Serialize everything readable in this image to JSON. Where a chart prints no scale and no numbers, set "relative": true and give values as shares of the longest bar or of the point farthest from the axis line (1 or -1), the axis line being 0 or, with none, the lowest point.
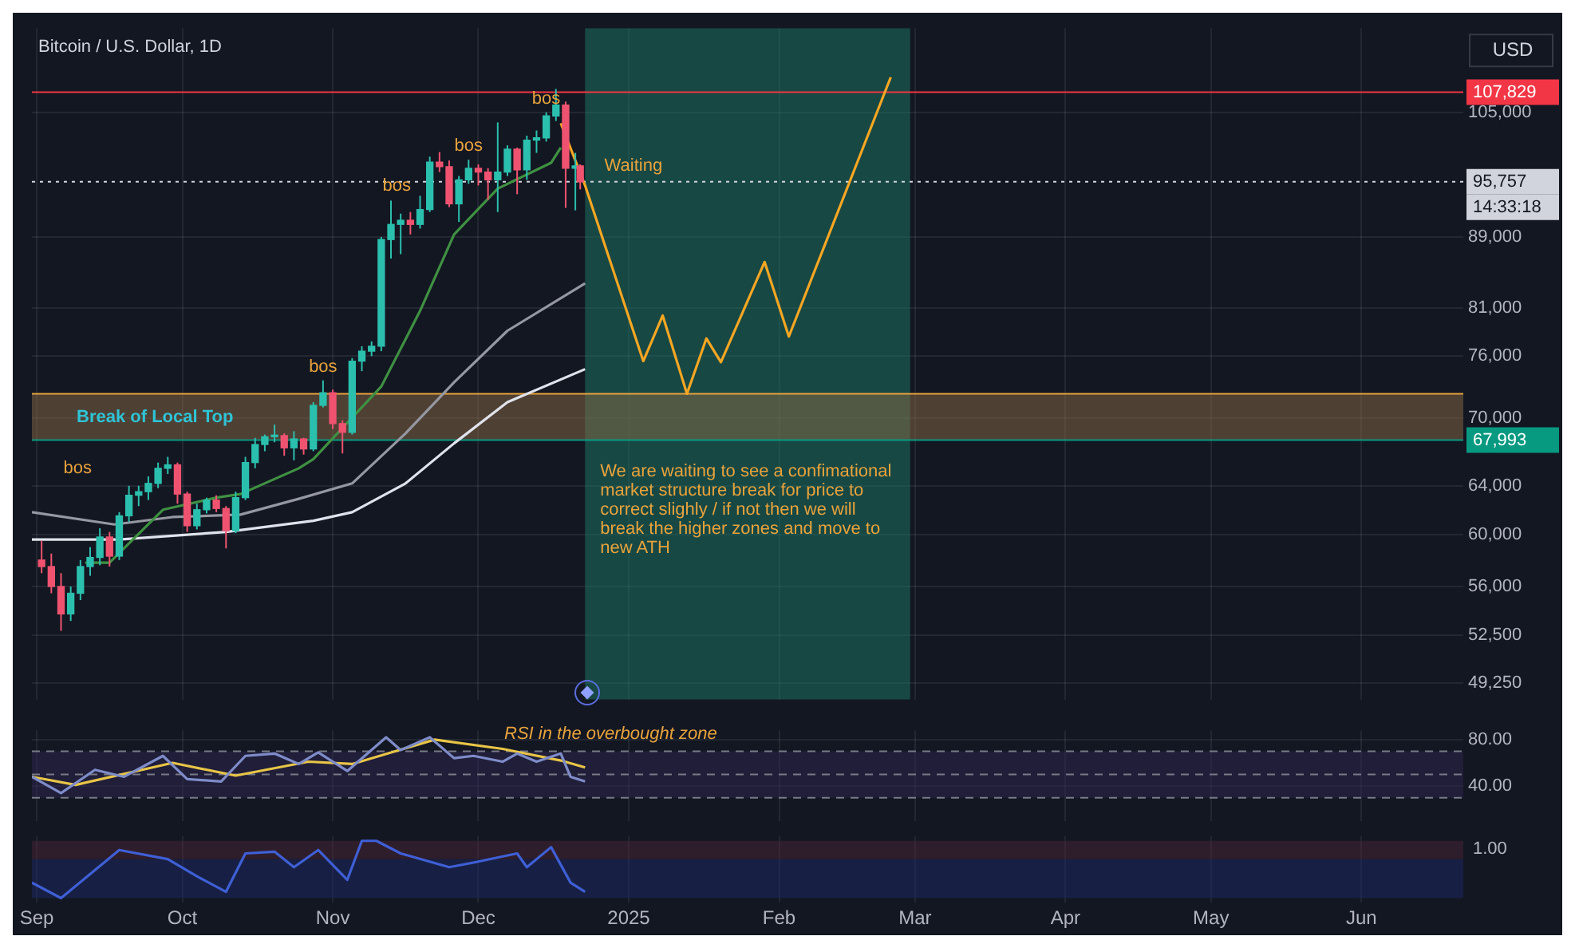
{
  "chart_data": [
    {
      "type": "candlestick",
      "title": "Bitcoin / U.S. Dollar, 1D",
      "ylabel": "USD",
      "log": true,
      "grid": true,
      "tick_labels": "y",
      "x": [
        "2024-09-02",
        "2024-09-04",
        "2024-09-06",
        "2024-09-08",
        "2024-09-10",
        "2024-09-12",
        "2024-09-14",
        "2024-09-16",
        "2024-09-18",
        "2024-09-20",
        "2024-09-22",
        "2024-09-24",
        "2024-09-26",
        "2024-09-28",
        "2024-09-30",
        "2024-10-02",
        "2024-10-04",
        "2024-10-06",
        "2024-10-08",
        "2024-10-10",
        "2024-10-12",
        "2024-10-14",
        "2024-10-16",
        "2024-10-18",
        "2024-10-20",
        "2024-10-22",
        "2024-10-24",
        "2024-10-26",
        "2024-10-28",
        "2024-10-30",
        "2024-11-01",
        "2024-11-03",
        "2024-11-05",
        "2024-11-07",
        "2024-11-09",
        "2024-11-11",
        "2024-11-13",
        "2024-11-15",
        "2024-11-17",
        "2024-11-19",
        "2024-11-21",
        "2024-11-23",
        "2024-11-25",
        "2024-11-27",
        "2024-11-29",
        "2024-12-01",
        "2024-12-03",
        "2024-12-05",
        "2024-12-07",
        "2024-12-09",
        "2024-12-11",
        "2024-12-13",
        "2024-12-15",
        "2024-12-17",
        "2024-12-19",
        "2024-12-21",
        "2024-12-22"
      ],
      "ohlc": [
        [
          58000,
          59500,
          57000,
          57500
        ],
        [
          57500,
          58500,
          55500,
          56000
        ],
        [
          56000,
          57000,
          52800,
          54000
        ],
        [
          54000,
          56000,
          53500,
          55500
        ],
        [
          55500,
          58000,
          55000,
          57500
        ],
        [
          57500,
          59000,
          56800,
          58200
        ],
        [
          58200,
          60500,
          57600,
          59800
        ],
        [
          59800,
          60200,
          57500,
          58300
        ],
        [
          58300,
          61800,
          58000,
          61500
        ],
        [
          61500,
          64000,
          61000,
          63200
        ],
        [
          63200,
          64000,
          62300,
          63500
        ],
        [
          63500,
          64800,
          62800,
          64200
        ],
        [
          64200,
          66000,
          63800,
          65500
        ],
        [
          65500,
          66500,
          65000,
          65800
        ],
        [
          65800,
          66000,
          62500,
          63300
        ],
        [
          63300,
          63500,
          60200,
          60700
        ],
        [
          60700,
          62500,
          60400,
          62000
        ],
        [
          62000,
          63000,
          61700,
          62800
        ],
        [
          62800,
          63200,
          61800,
          62100
        ],
        [
          62100,
          62300,
          58900,
          60300
        ],
        [
          60300,
          63500,
          60100,
          63000
        ],
        [
          63000,
          66500,
          62800,
          66000
        ],
        [
          66000,
          68200,
          65500,
          67600
        ],
        [
          67600,
          68500,
          67000,
          68300
        ],
        [
          68300,
          69400,
          67800,
          68400
        ],
        [
          68400,
          68600,
          66600,
          67300
        ],
        [
          67300,
          68800,
          66200,
          68100
        ],
        [
          68100,
          68200,
          66700,
          67200
        ],
        [
          67200,
          71500,
          67000,
          71200
        ],
        [
          71200,
          73600,
          71000,
          72400
        ],
        [
          72400,
          72700,
          69000,
          69500
        ],
        [
          69500,
          69800,
          66800,
          68700
        ],
        [
          68700,
          75800,
          68500,
          75500
        ],
        [
          75500,
          77000,
          74500,
          76500
        ],
        [
          76500,
          77500,
          76000,
          77000
        ],
        [
          77000,
          89000,
          76500,
          88700
        ],
        [
          88700,
          93400,
          86500,
          90500
        ],
        [
          90500,
          91800,
          87000,
          91000
        ],
        [
          91000,
          92000,
          89300,
          90500
        ],
        [
          90500,
          94000,
          90000,
          92300
        ],
        [
          92300,
          99000,
          92000,
          98300
        ],
        [
          98300,
          99600,
          97000,
          97700
        ],
        [
          97700,
          98500,
          92600,
          93000
        ],
        [
          93000,
          96500,
          90800,
          96000
        ],
        [
          96000,
          98600,
          95500,
          97500
        ],
        [
          97500,
          98000,
          95300,
          97000
        ],
        [
          97000,
          97500,
          93500,
          96000
        ],
        [
          96000,
          103600,
          92000,
          97000
        ],
        [
          97000,
          100500,
          96500,
          100000
        ],
        [
          100000,
          100200,
          94200,
          97300
        ],
        [
          97300,
          101800,
          96000,
          101200
        ],
        [
          101200,
          102500,
          99500,
          101500
        ],
        [
          101500,
          105000,
          101000,
          104500
        ],
        [
          104500,
          108300,
          103800,
          106000
        ],
        [
          106000,
          106500,
          92500,
          97500
        ],
        [
          97500,
          99500,
          92200,
          97800
        ],
        [
          97800,
          98000,
          94800,
          95757
        ]
      ],
      "xticks": [
        {
          "value": "2024-09-01",
          "label": null
        },
        {
          "value": "2024-10-01",
          "label": null
        },
        {
          "value": "2024-11-01",
          "label": null
        },
        {
          "value": "2024-12-01",
          "label": null
        },
        {
          "value": "2025-01-01",
          "label": null
        },
        {
          "value": "2025-02-01",
          "label": null
        },
        {
          "value": "2025-03-01",
          "label": null
        },
        {
          "value": "2025-04-01",
          "label": null
        },
        {
          "value": "2025-05-01",
          "label": null
        },
        {
          "value": "2025-06-01",
          "label": null
        }
      ],
      "series": [
        {
          "type": "line",
          "color": "#3f9142",
          "x": [
            "2024-09-11",
            "2024-09-16",
            "2024-09-27",
            "2024-10-08",
            "2024-10-13",
            "2024-10-25",
            "2024-10-28",
            "2024-11-11",
            "2024-11-19",
            "2024-11-26",
            "2024-12-05",
            "2024-12-16",
            "2024-12-18"
          ],
          "values": [
            57800,
            57800,
            62000,
            63000,
            63300,
            65500,
            66300,
            73000,
            80700,
            89300,
            94900,
            98200,
            100200
          ]
        },
        {
          "type": "line",
          "color": "#9598a1",
          "x": [
            "2024-08-31",
            "2024-09-17",
            "2024-09-29",
            "2024-10-13",
            "2024-10-25",
            "2024-11-05",
            "2024-11-16",
            "2024-11-26",
            "2024-12-07",
            "2024-12-23"
          ],
          "values": [
            61800,
            60800,
            61400,
            61600,
            62900,
            64200,
            68600,
            73400,
            78600,
            83700
          ]
        },
        {
          "type": "line",
          "color": "#e0e3eb",
          "x": [
            "2024-08-31",
            "2024-09-18",
            "2024-10-10",
            "2024-10-28",
            "2024-11-05",
            "2024-11-16",
            "2024-11-26",
            "2024-12-07",
            "2024-12-23"
          ],
          "values": [
            59600,
            59600,
            60200,
            61100,
            61800,
            64200,
            67700,
            71500,
            74700
          ]
        },
        {
          "type": "line",
          "color": "#f5a623",
          "x": [
            "2024-12-18",
            "2024-12-23",
            "2025-01-04",
            "2025-01-08",
            "2025-01-13",
            "2025-01-17",
            "2025-01-20",
            "2025-01-29",
            "2025-02-03",
            "2025-02-24"
          ],
          "values": [
            103500,
            95300,
            75500,
            80200,
            72300,
            77800,
            75400,
            86100,
            78000,
            110000
          ]
        }
      ],
      "xlim": [
        "2024-08-31",
        "2025-06-22"
      ],
      "ylim": [
        48200,
        117400
      ],
      "yticks": [
        {
          "value": 49250,
          "label": "49,250"
        },
        {
          "value": 52500,
          "label": "52,500"
        },
        {
          "value": 56000,
          "label": "56,000"
        },
        {
          "value": 60000,
          "label": "60,000"
        },
        {
          "value": 64000,
          "label": "64,000"
        },
        {
          "value": 70000,
          "label": "70,000"
        },
        {
          "value": 76000,
          "label": "76,000"
        },
        {
          "value": 81000,
          "label": "81,000"
        },
        {
          "value": 89000,
          "label": "89,000"
        },
        {
          "value": 105000,
          "label": "105,000"
        }
      ],
      "ref_lines": [
        {
          "axis": "y",
          "value": 107829,
          "label": "107,829",
          "color": "#f23645"
        },
        {
          "axis": "y",
          "value": 95757,
          "label": "95,757",
          "color": "#d1d4dc",
          "line_style": "dotted"
        },
        {
          "axis": "y",
          "value": 67993,
          "label": "67,993",
          "color": "#089981"
        },
        {
          "axis": "y",
          "value": 72300,
          "color": "#e8a33c"
        }
      ],
      "bands": [
        {
          "axis": "x",
          "from": "2024-12-23",
          "to": "2025-02-28",
          "color": "#1b7a66"
        },
        {
          "axis": "y",
          "from": 68000,
          "to": 72300,
          "label": "Break of Local Top",
          "color": "#8c6a45"
        }
      ],
      "annotations": [
        "bos",
        {
          "text": "bos",
          "x": "2024-10-30",
          "y": 73600
        },
        "bos",
        {
          "text": "bos",
          "x": "2024-11-29",
          "y": 98600
        },
        {
          "text": "bos",
          "x": "2024-12-15",
          "y": 105000
        },
        "Waiting",
        "We are waiting to see a confimational market structure break for price to correct slighly / if not then we will break the higher zones and move to new ATH",
        "14:33:18"
      ]
    },
    {
      "type": "line",
      "grid": true,
      "tick_labels": "y",
      "series": [
        {
          "color": "#7e8cc9",
          "x": [
            "2024-08-31",
            "2024-09-06",
            "2024-09-13",
            "2024-09-19",
            "2024-09-27",
            "2024-10-02",
            "2024-10-09",
            "2024-10-14",
            "2024-10-20",
            "2024-10-25",
            "2024-10-29",
            "2024-11-04",
            "2024-11-12",
            "2024-11-15",
            "2024-11-21",
            "2024-11-26",
            "2024-11-30",
            "2024-12-06",
            "2024-12-09",
            "2024-12-13",
            "2024-12-18",
            "2024-12-20",
            "2024-12-23"
          ],
          "values": [
            48,
            34,
            54,
            48,
            66,
            46,
            44,
            66,
            68,
            59,
            69,
            53,
            82,
            71,
            82,
            64,
            66,
            61,
            68,
            61,
            68,
            48,
            44
          ]
        },
        {
          "color": "#e8c547",
          "x": [
            "2024-08-31",
            "2024-09-09",
            "2024-09-29",
            "2024-10-12",
            "2024-10-27",
            "2024-11-05",
            "2024-11-22",
            "2024-12-06",
            "2024-12-18",
            "2024-12-23"
          ],
          "values": [
            48,
            41,
            60,
            49,
            61,
            59,
            80,
            72,
            62,
            56
          ]
        }
      ],
      "xlim": [
        "2024-08-31",
        "2025-06-22"
      ],
      "xticks": [
        {
          "value": "2024-09-01",
          "label": null
        },
        {
          "value": "2024-10-01",
          "label": null
        },
        {
          "value": "2024-11-01",
          "label": null
        },
        {
          "value": "2024-12-01",
          "label": null
        },
        {
          "value": "2025-01-01",
          "label": null
        },
        {
          "value": "2025-02-01",
          "label": null
        },
        {
          "value": "2025-03-01",
          "label": null
        },
        {
          "value": "2025-04-01",
          "label": null
        },
        {
          "value": "2025-05-01",
          "label": null
        },
        {
          "value": "2025-06-01",
          "label": null
        }
      ],
      "ylim": [
        10,
        88
      ],
      "yticks": [
        {
          "value": 40,
          "label": "40.00"
        },
        {
          "value": 80,
          "label": "80.00"
        }
      ],
      "ref_lines": [
        {
          "axis": "y",
          "value": 70,
          "color": "#787b86",
          "line_style": "dashed"
        },
        {
          "axis": "y",
          "value": 50,
          "color": "#787b86",
          "line_style": "dashed"
        },
        {
          "axis": "y",
          "value": 30,
          "color": "#787b86",
          "line_style": "dashed"
        }
      ],
      "bands": [
        {
          "axis": "y",
          "from": 30,
          "to": 70,
          "color": "#2e2650"
        }
      ],
      "annotations": [
        "RSI in the overbought zone"
      ]
    },
    {
      "type": "line",
      "relative": true,
      "grid": "x",
      "tick_labels": "x",
      "series": [
        {
          "color": "#3f5fd6",
          "x": [
            "2024-08-31",
            "2024-09-06",
            "2024-09-18",
            "2024-09-28",
            "2024-10-04",
            "2024-10-10",
            "2024-10-14",
            "2024-10-20",
            "2024-10-24",
            "2024-10-29",
            "2024-11-04",
            "2024-11-07",
            "2024-11-10",
            "2024-11-15",
            "2024-11-25",
            "2024-11-30",
            "2024-12-09",
            "2024-12-11",
            "2024-12-16",
            "2024-12-20",
            "2024-12-23"
          ],
          "values": [
            0.27,
            0,
            0.84,
            0.68,
            0.38,
            0.11,
            0.78,
            0.81,
            0.54,
            0.84,
            0.32,
            1,
            1,
            0.78,
            0.54,
            0.62,
            0.78,
            0.54,
            0.89,
            0.27,
            0.11
          ]
        }
      ],
      "xlim": [
        "2024-08-31",
        "2025-06-22"
      ],
      "xticks": [
        {
          "value": "2024-09-01",
          "label": "Sep"
        },
        {
          "value": "2024-10-01",
          "label": "Oct"
        },
        {
          "value": "2024-11-01",
          "label": "Nov"
        },
        {
          "value": "2024-12-01",
          "label": "Dec"
        },
        {
          "value": "2025-01-01",
          "label": "2025"
        },
        {
          "value": "2025-02-01",
          "label": "Feb"
        },
        {
          "value": "2025-03-01",
          "label": "Mar"
        },
        {
          "value": "2025-04-01",
          "label": "Apr"
        },
        {
          "value": "2025-05-01",
          "label": "May"
        },
        {
          "value": "2025-06-01",
          "label": "Jun"
        }
      ],
      "bands": [
        {
          "axis": "y",
          "from": 0.68,
          "to": 1,
          "color": "#4a2433"
        },
        {
          "axis": "y",
          "from": 0,
          "to": 0.68,
          "color": "#1c2a66"
        }
      ],
      "annotations": [
        "1.00"
      ]
    }
  ]
}
